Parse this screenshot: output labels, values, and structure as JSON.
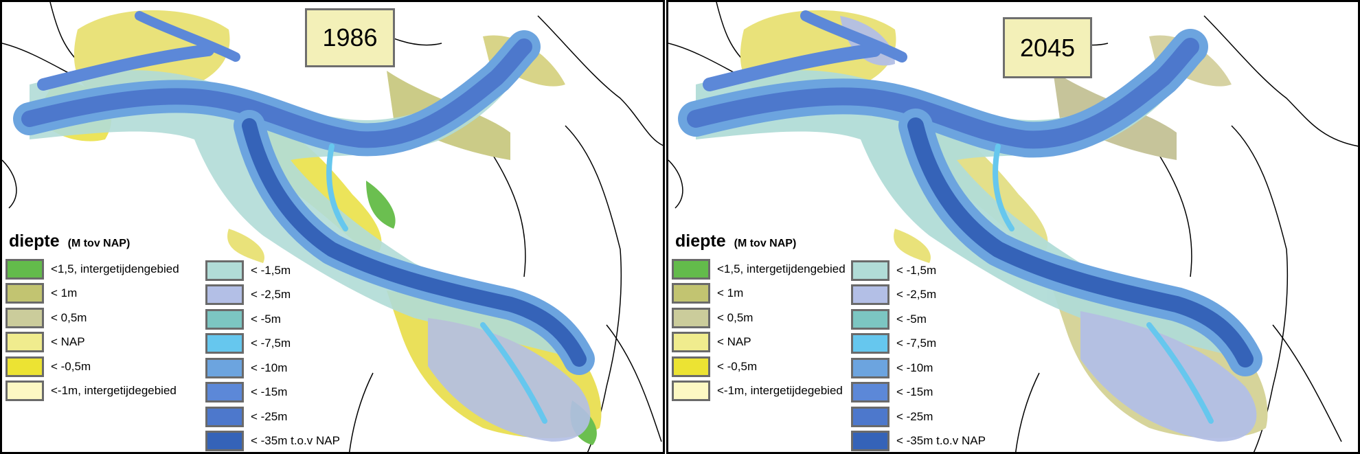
{
  "panels": [
    {
      "year": "1986"
    },
    {
      "year": "2045"
    }
  ],
  "legend": {
    "title": "diepte",
    "unit": "(M tov NAP)",
    "left_items": [
      {
        "label": "<1,5, intergetijdengebied",
        "color": "#63bb4b"
      },
      {
        "label": "< 1m",
        "color": "#c2c471"
      },
      {
        "label": "< 0,5m",
        "color": "#cbcc9b"
      },
      {
        "label": "< NAP",
        "color": "#f0ec8e"
      },
      {
        "label": "< -0,5m",
        "color": "#ece333"
      },
      {
        "label": "<-1m, intergetijdegebied",
        "color": "#fcf8c3"
      }
    ],
    "right_items": [
      {
        "label": "< -1,5m",
        "color": "#b1dcd7"
      },
      {
        "label": "< -2,5m",
        "color": "#b3bfe6"
      },
      {
        "label": "< -5m",
        "color": "#7cc6c2"
      },
      {
        "label": "< -7,5m",
        "color": "#66c7ee"
      },
      {
        "label": "< -10m",
        "color": "#6ca4df"
      },
      {
        "label": "< -15m",
        "color": "#5c88d8"
      },
      {
        "label": "< -25m",
        "color": "#4d78cc"
      },
      {
        "label": "< -35m t.o.v NAP",
        "color": "#3563b8"
      }
    ]
  }
}
